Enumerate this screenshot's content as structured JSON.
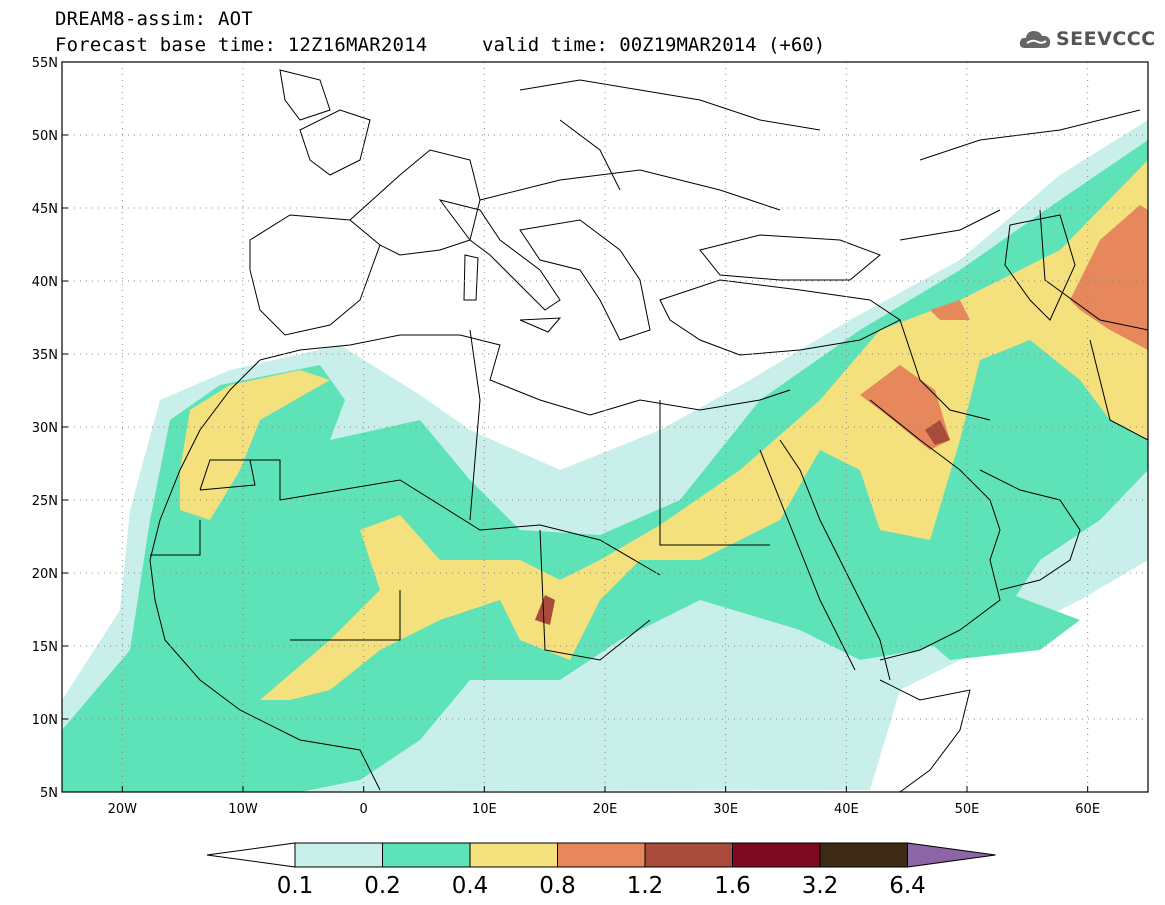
{
  "header": {
    "line1": "DREAM8-assim: AOT",
    "line2": "Forecast base time: 12Z16MAR2014",
    "valid_time": "valid time: 00Z19MAR2014 (+60)"
  },
  "logo": {
    "text": "SEEVCCC",
    "icon": "cloud-logo-icon"
  },
  "map": {
    "lat_labels": [
      "55N",
      "50N",
      "45N",
      "40N",
      "35N",
      "30N",
      "25N",
      "20N",
      "15N",
      "10N",
      "5N"
    ],
    "lon_labels": [
      "20W",
      "10W",
      "0",
      "10E",
      "20E",
      "30E",
      "40E",
      "50E",
      "60E"
    ],
    "lat_range": [
      5,
      55
    ],
    "lon_range": [
      -25,
      65
    ],
    "grid": "dotted"
  },
  "colorbar": {
    "labels": [
      "0.1",
      "0.2",
      "0.4",
      "0.8",
      "1.2",
      "1.6",
      "3.2",
      "6.4"
    ],
    "colors": [
      "#ffffff",
      "#c8efe9",
      "#5ee3b8",
      "#f4e07c",
      "#e7875c",
      "#a84b3b",
      "#7d0a22",
      "#3d2a15",
      "#8b65a5"
    ]
  }
}
